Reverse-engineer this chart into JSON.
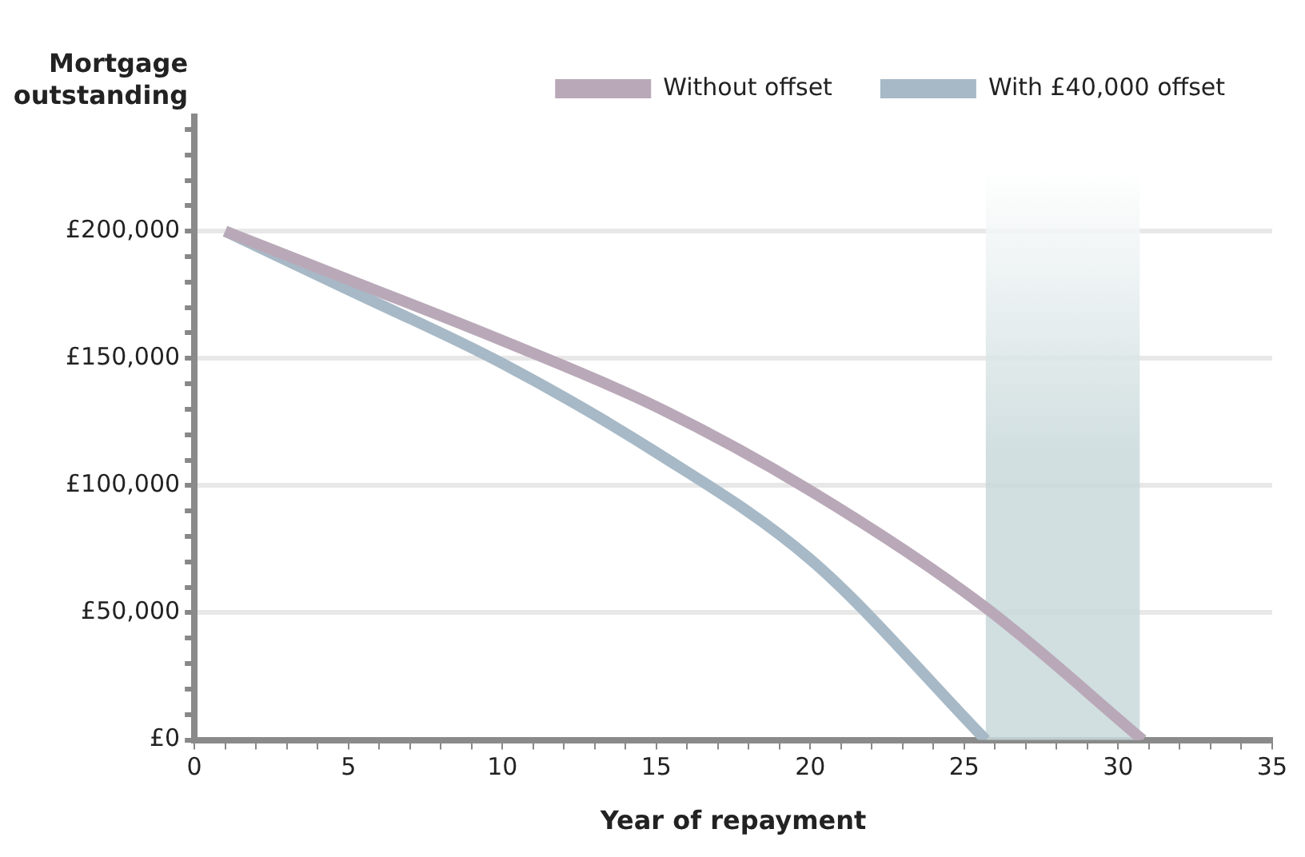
{
  "chart_data": {
    "type": "line",
    "xlabel": "Year of repayment",
    "ylabel": "Mortgage outstanding",
    "series": [
      {
        "name": "Without offset",
        "color": "#b9a9b8",
        "x": [
          1,
          5,
          10,
          15,
          20,
          25.7,
          30.8
        ],
        "values": [
          200000,
          181000,
          157000,
          131000,
          98000,
          52000,
          0
        ]
      },
      {
        "name": "With £40,000 offset",
        "color": "#a7b9c6",
        "x": [
          1,
          5,
          10,
          15,
          20,
          25.7
        ],
        "values": [
          200000,
          177000,
          148000,
          113000,
          71000,
          0
        ]
      }
    ],
    "bands": [
      {
        "axis": "x",
        "from": 25.7,
        "to": 30.7,
        "color": "#c9d9db"
      }
    ],
    "xlim": [
      0,
      35
    ],
    "xticks": [
      0,
      {
        "value": 1,
        "label": null
      },
      {
        "value": 2,
        "label": null
      },
      {
        "value": 3,
        "label": null
      },
      {
        "value": 4,
        "label": null
      },
      5,
      {
        "value": 6,
        "label": null
      },
      {
        "value": 7,
        "label": null
      },
      {
        "value": 8,
        "label": null
      },
      {
        "value": 9,
        "label": null
      },
      10,
      {
        "value": 11,
        "label": null
      },
      {
        "value": 12,
        "label": null
      },
      {
        "value": 13,
        "label": null
      },
      {
        "value": 14,
        "label": null
      },
      15,
      {
        "value": 16,
        "label": null
      },
      {
        "value": 17,
        "label": null
      },
      {
        "value": 18,
        "label": null
      },
      {
        "value": 19,
        "label": null
      },
      20,
      {
        "value": 21,
        "label": null
      },
      {
        "value": 22,
        "label": null
      },
      {
        "value": 23,
        "label": null
      },
      {
        "value": 24,
        "label": null
      },
      25,
      {
        "value": 26,
        "label": null
      },
      {
        "value": 27,
        "label": null
      },
      {
        "value": 28,
        "label": null
      },
      {
        "value": 29,
        "label": null
      },
      30,
      {
        "value": 31,
        "label": null
      },
      {
        "value": 32,
        "label": null
      },
      {
        "value": 33,
        "label": null
      },
      {
        "value": 34,
        "label": null
      },
      35
    ],
    "ylim": [
      0,
      245000
    ],
    "yticks": [
      {
        "value": 0,
        "label": "£0"
      },
      {
        "value": 10000,
        "label": null
      },
      {
        "value": 20000,
        "label": null
      },
      {
        "value": 30000,
        "label": null
      },
      {
        "value": 40000,
        "label": null
      },
      {
        "value": 50000,
        "label": "£50,000"
      },
      {
        "value": 60000,
        "label": null
      },
      {
        "value": 70000,
        "label": null
      },
      {
        "value": 80000,
        "label": null
      },
      {
        "value": 90000,
        "label": null
      },
      {
        "value": 100000,
        "label": "£100,000"
      },
      {
        "value": 110000,
        "label": null
      },
      {
        "value": 120000,
        "label": null
      },
      {
        "value": 130000,
        "label": null
      },
      {
        "value": 140000,
        "label": null
      },
      {
        "value": 150000,
        "label": "£150,000"
      },
      {
        "value": 160000,
        "label": null
      },
      {
        "value": 170000,
        "label": null
      },
      {
        "value": 180000,
        "label": null
      },
      {
        "value": 190000,
        "label": null
      },
      {
        "value": 200000,
        "label": "£200,000"
      },
      {
        "value": 210000,
        "label": null
      },
      {
        "value": 220000,
        "label": null
      },
      {
        "value": 230000,
        "label": null
      },
      {
        "value": 240000,
        "label": null
      }
    ],
    "grid": "y",
    "legend": "top",
    "marker": "none",
    "line_style": "solid"
  }
}
